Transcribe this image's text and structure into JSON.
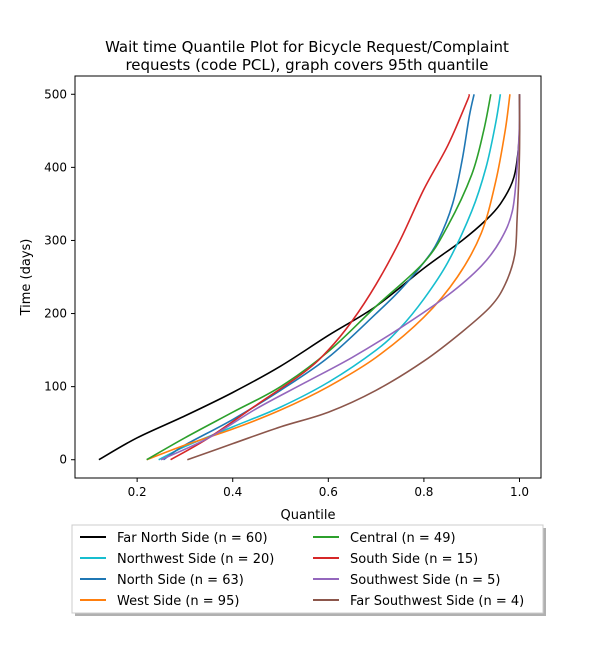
{
  "chart_data": {
    "type": "line",
    "title_line1": "Wait time Quantile Plot for Bicycle Request/Complaint",
    "title_line2": "requests (code PCL), graph covers 95th quantile",
    "xlabel": "Quantile",
    "ylabel": "Time (days)",
    "xlim": [
      0.07,
      1.045
    ],
    "ylim": [
      -25,
      525
    ],
    "xticks": [
      0.2,
      0.4,
      0.6,
      0.8,
      1.0
    ],
    "xtick_labels": [
      "0.2",
      "0.4",
      "0.6",
      "0.8",
      "1.0"
    ],
    "yticks": [
      0,
      100,
      200,
      300,
      400,
      500
    ],
    "ytick_labels": [
      "0",
      "100",
      "200",
      "300",
      "400",
      "500"
    ],
    "grid": false,
    "legend_placement": "below-plot",
    "series": [
      {
        "name": "Far North Side (n = 60)",
        "color": "#000000",
        "points": [
          [
            0.12,
            0
          ],
          [
            0.2,
            30
          ],
          [
            0.3,
            60
          ],
          [
            0.4,
            92
          ],
          [
            0.5,
            128
          ],
          [
            0.6,
            170
          ],
          [
            0.7,
            210
          ],
          [
            0.8,
            262
          ],
          [
            0.88,
            300
          ],
          [
            0.93,
            328
          ],
          [
            0.96,
            350
          ],
          [
            0.985,
            380
          ],
          [
            0.995,
            410
          ],
          [
            1.0,
            450
          ],
          [
            1.0,
            500
          ]
        ]
      },
      {
        "name": "Northwest Side (n = 20)",
        "color": "#17becf",
        "points": [
          [
            0.245,
            0
          ],
          [
            0.3,
            18
          ],
          [
            0.4,
            45
          ],
          [
            0.5,
            72
          ],
          [
            0.6,
            106
          ],
          [
            0.7,
            150
          ],
          [
            0.75,
            180
          ],
          [
            0.8,
            220
          ],
          [
            0.85,
            270
          ],
          [
            0.9,
            340
          ],
          [
            0.93,
            400
          ],
          [
            0.95,
            460
          ],
          [
            0.96,
            500
          ]
        ]
      },
      {
        "name": "North Side (n = 63)",
        "color": "#1f77b4",
        "points": [
          [
            0.255,
            0
          ],
          [
            0.3,
            20
          ],
          [
            0.4,
            55
          ],
          [
            0.5,
            95
          ],
          [
            0.6,
            140
          ],
          [
            0.7,
            200
          ],
          [
            0.75,
            232
          ],
          [
            0.8,
            270
          ],
          [
            0.83,
            300
          ],
          [
            0.86,
            350
          ],
          [
            0.88,
            410
          ],
          [
            0.895,
            470
          ],
          [
            0.905,
            500
          ]
        ]
      },
      {
        "name": "West Side (n = 95)",
        "color": "#ff7f0e",
        "points": [
          [
            0.22,
            0
          ],
          [
            0.3,
            20
          ],
          [
            0.4,
            42
          ],
          [
            0.5,
            68
          ],
          [
            0.6,
            100
          ],
          [
            0.7,
            140
          ],
          [
            0.8,
            195
          ],
          [
            0.87,
            250
          ],
          [
            0.92,
            310
          ],
          [
            0.95,
            380
          ],
          [
            0.97,
            450
          ],
          [
            0.98,
            500
          ]
        ]
      },
      {
        "name": "Central (n = 49)",
        "color": "#2ca02c",
        "points": [
          [
            0.22,
            0
          ],
          [
            0.3,
            30
          ],
          [
            0.4,
            65
          ],
          [
            0.5,
            100
          ],
          [
            0.6,
            148
          ],
          [
            0.7,
            210
          ],
          [
            0.8,
            270
          ],
          [
            0.85,
            320
          ],
          [
            0.9,
            390
          ],
          [
            0.925,
            450
          ],
          [
            0.94,
            500
          ]
        ]
      },
      {
        "name": "South Side (n = 15)",
        "color": "#d62728",
        "points": [
          [
            0.27,
            0
          ],
          [
            0.35,
            30
          ],
          [
            0.45,
            75
          ],
          [
            0.55,
            120
          ],
          [
            0.6,
            150
          ],
          [
            0.65,
            190
          ],
          [
            0.7,
            240
          ],
          [
            0.75,
            300
          ],
          [
            0.8,
            370
          ],
          [
            0.85,
            430
          ],
          [
            0.89,
            490
          ],
          [
            0.895,
            500
          ]
        ]
      },
      {
        "name": "Southwest Side (n = 5)",
        "color": "#9467bd",
        "points": [
          [
            0.25,
            0
          ],
          [
            0.35,
            30
          ],
          [
            0.45,
            70
          ],
          [
            0.55,
            105
          ],
          [
            0.65,
            140
          ],
          [
            0.75,
            180
          ],
          [
            0.85,
            225
          ],
          [
            0.92,
            265
          ],
          [
            0.96,
            300
          ],
          [
            0.985,
            340
          ],
          [
            0.995,
            400
          ],
          [
            1.0,
            460
          ],
          [
            1.0,
            500
          ]
        ]
      },
      {
        "name": "Far Southwest Side (n = 4)",
        "color": "#8c564b",
        "points": [
          [
            0.305,
            0
          ],
          [
            0.4,
            22
          ],
          [
            0.5,
            45
          ],
          [
            0.6,
            65
          ],
          [
            0.7,
            95
          ],
          [
            0.8,
            135
          ],
          [
            0.88,
            175
          ],
          [
            0.94,
            210
          ],
          [
            0.97,
            240
          ],
          [
            0.99,
            280
          ],
          [
            0.995,
            330
          ],
          [
            1.0,
            420
          ],
          [
            1.0,
            500
          ]
        ]
      }
    ]
  }
}
